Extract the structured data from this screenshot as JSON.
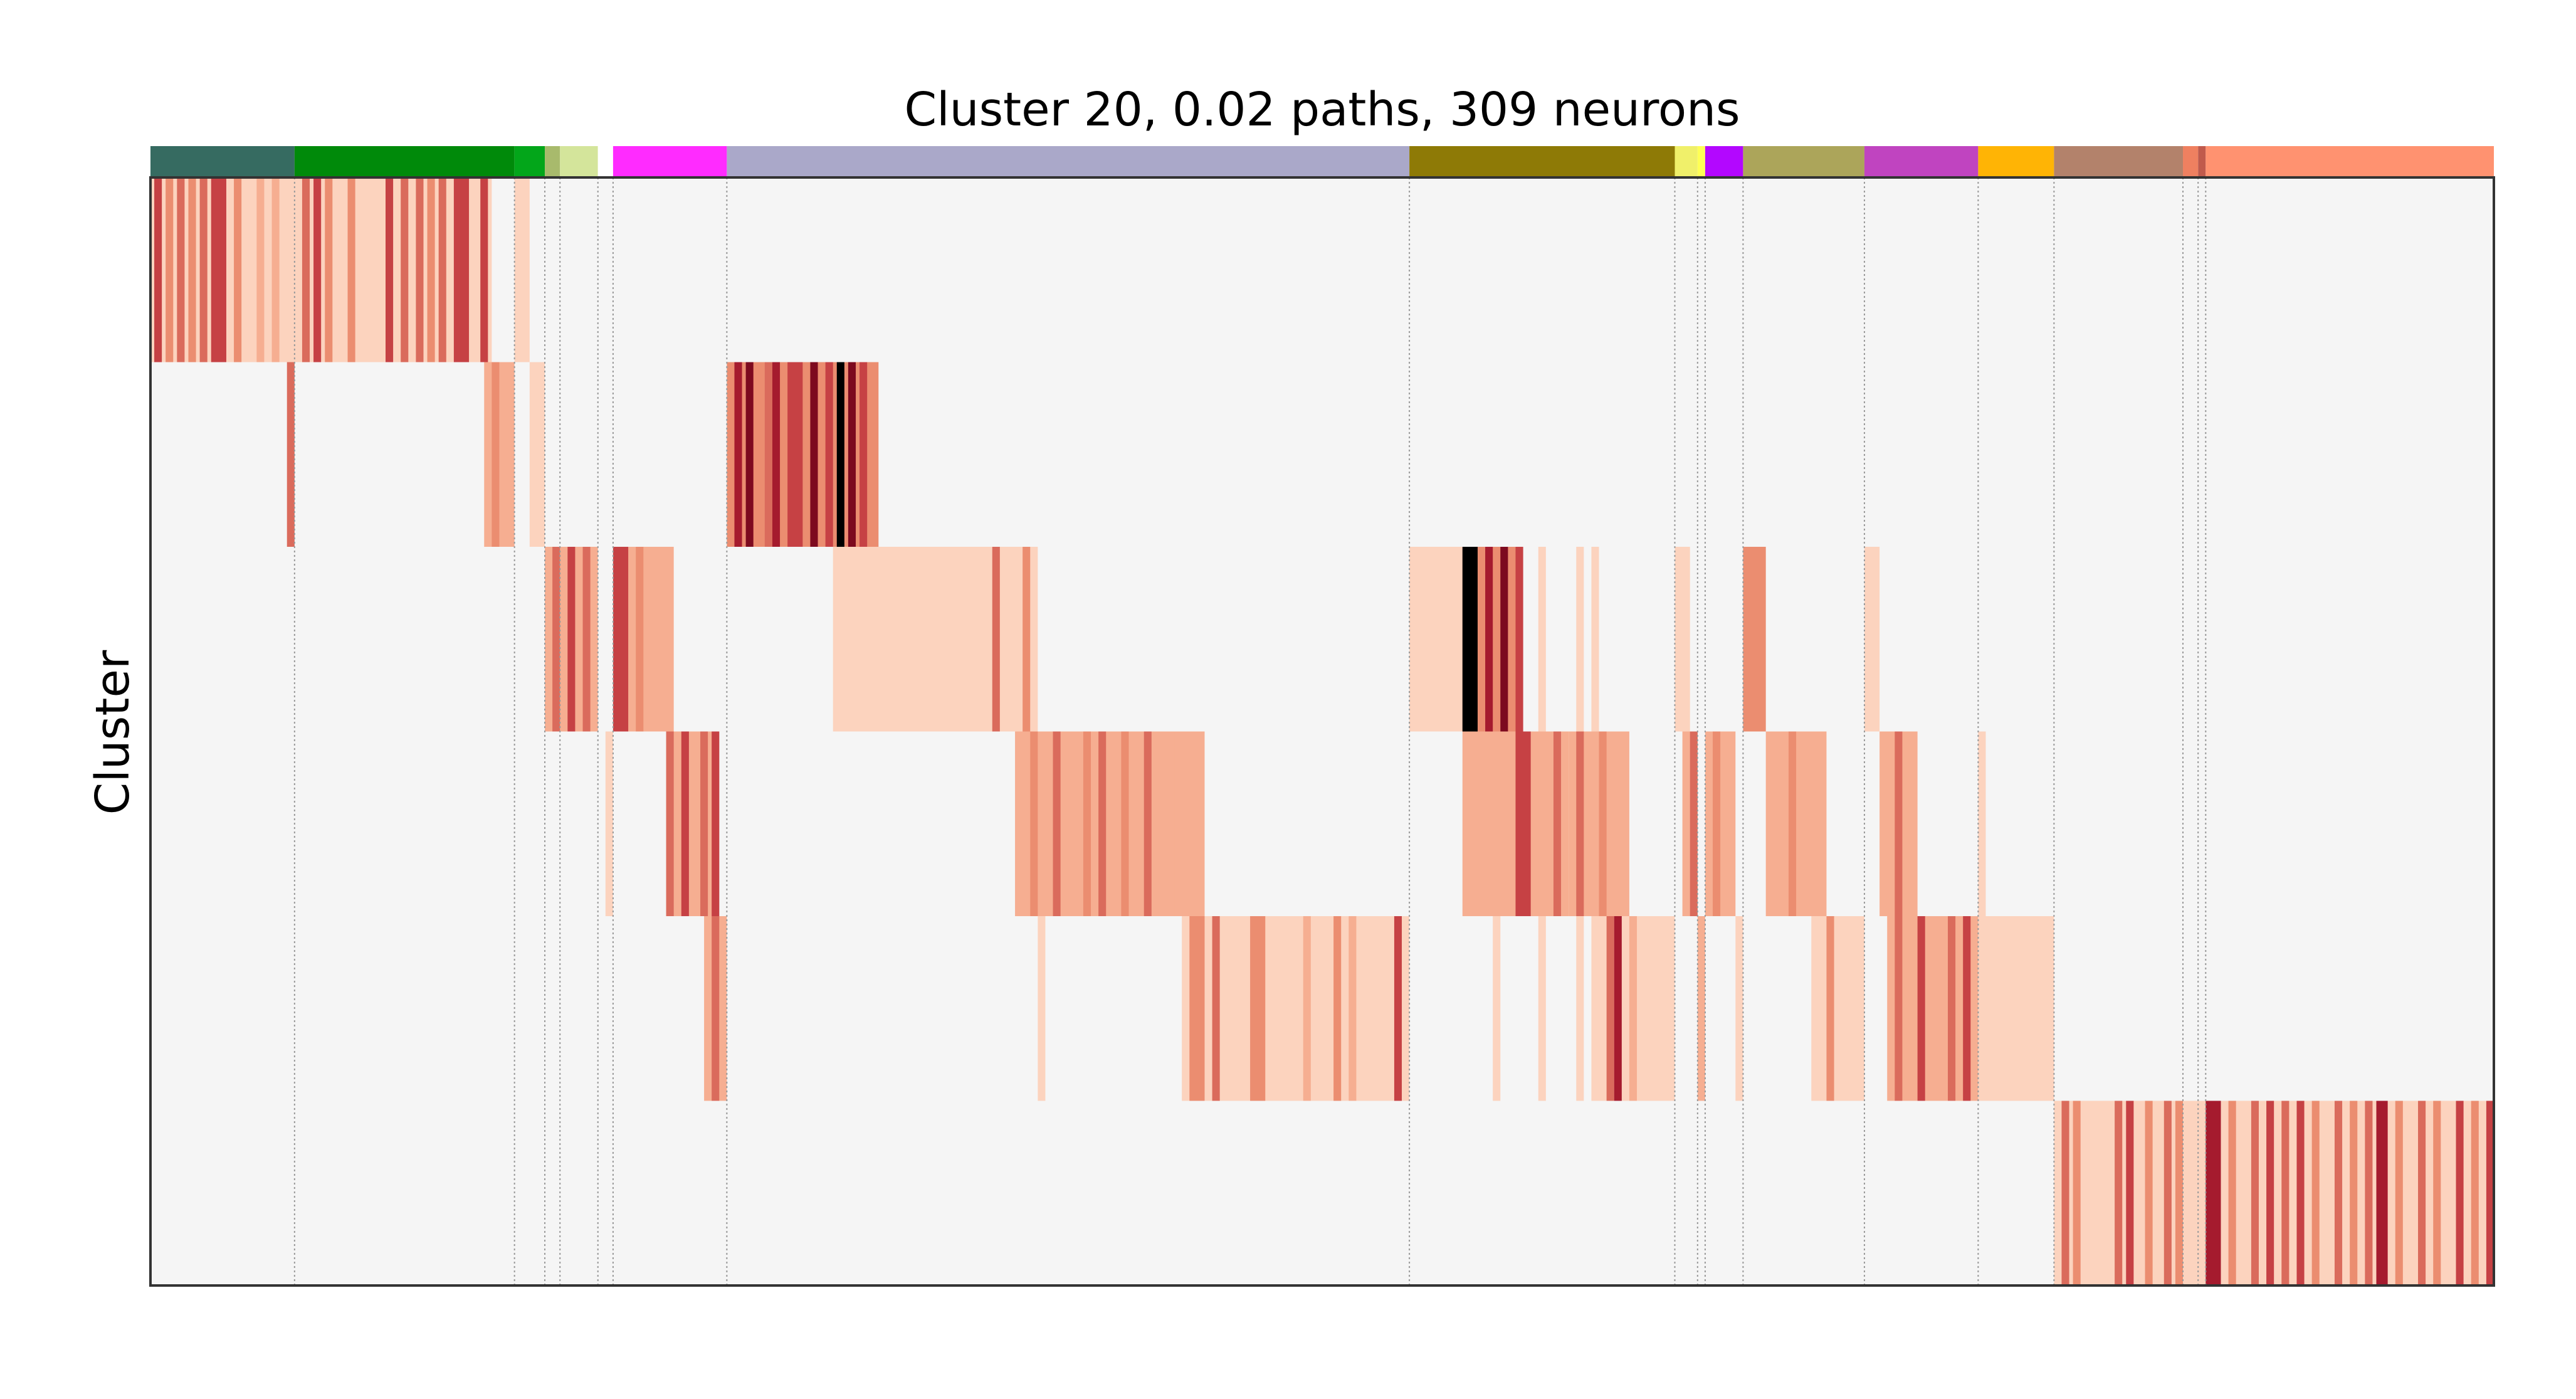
{
  "chart_data": {
    "type": "heatmap",
    "title": "Cluster 20, 0.02 paths, 309 neurons",
    "ylabel": "Cluster",
    "xlabel": "",
    "x_range": [
      0,
      309
    ],
    "row_count": 6,
    "grid": "vertical dotted separators between neuron groups",
    "colormap": [
      "#f5f5f5",
      "#fcd3be",
      "#f6ae91",
      "#eb8d70",
      "#da6b5c",
      "#c64144",
      "#a51b2e",
      "#7d0a1f"
    ],
    "groups": [
      {
        "start": 0,
        "end": 19,
        "color": "#366b61"
      },
      {
        "start": 19,
        "end": 48,
        "color": "#008a0a"
      },
      {
        "start": 48,
        "end": 52,
        "color": "#03a61a"
      },
      {
        "start": 52,
        "end": 54,
        "color": "#a8ba6c"
      },
      {
        "start": 54,
        "end": 59,
        "color": "#d4e59b"
      },
      {
        "start": 59,
        "end": 61,
        "color": "#ffffff"
      },
      {
        "start": 61,
        "end": 76,
        "color": "#ff2bff"
      },
      {
        "start": 76,
        "end": 166,
        "color": "#aaa8c9"
      },
      {
        "start": 166,
        "end": 201,
        "color": "#8e7a06"
      },
      {
        "start": 201,
        "end": 204,
        "color": "#f0f06a"
      },
      {
        "start": 204,
        "end": 205,
        "color": "#ffff55"
      },
      {
        "start": 205,
        "end": 210,
        "color": "#b307ff"
      },
      {
        "start": 210,
        "end": 226,
        "color": "#aca55a"
      },
      {
        "start": 226,
        "end": 241,
        "color": "#c044c0"
      },
      {
        "start": 241,
        "end": 251,
        "color": "#ffb405"
      },
      {
        "start": 251,
        "end": 268,
        "color": "#b3826b"
      },
      {
        "start": 268,
        "end": 270,
        "color": "#ef8060"
      },
      {
        "start": 270,
        "end": 271,
        "color": "#c05a4c"
      },
      {
        "start": 271,
        "end": 309,
        "color": "#ff9270"
      }
    ],
    "rows": [
      {
        "cluster": 1,
        "segments": [
          {
            "x0": 0,
            "x1": 45,
            "level": 1
          },
          {
            "x0": 48,
            "x1": 50,
            "level": 1
          }
        ],
        "bands": [
          {
            "x": 0.5,
            "w": 1,
            "level": 5
          },
          {
            "x": 2,
            "w": 1,
            "level": 3
          },
          {
            "x": 3.5,
            "w": 1,
            "level": 4
          },
          {
            "x": 5,
            "w": 1,
            "level": 3
          },
          {
            "x": 6.5,
            "w": 1,
            "level": 4
          },
          {
            "x": 8,
            "w": 2,
            "level": 5
          },
          {
            "x": 11,
            "w": 1,
            "level": 3
          },
          {
            "x": 14,
            "w": 1,
            "level": 2
          },
          {
            "x": 16,
            "w": 1,
            "level": 2
          },
          {
            "x": 20,
            "w": 1,
            "level": 4
          },
          {
            "x": 21.5,
            "w": 1,
            "level": 5
          },
          {
            "x": 23,
            "w": 1,
            "level": 3
          },
          {
            "x": 26,
            "w": 1,
            "level": 3
          },
          {
            "x": 31,
            "w": 1,
            "level": 5
          },
          {
            "x": 33,
            "w": 1,
            "level": 4
          },
          {
            "x": 35,
            "w": 1,
            "level": 4
          },
          {
            "x": 36.5,
            "w": 1,
            "level": 3
          },
          {
            "x": 38,
            "w": 1,
            "level": 4
          },
          {
            "x": 40,
            "w": 2,
            "level": 5
          },
          {
            "x": 43.5,
            "w": 1,
            "level": 5
          }
        ]
      },
      {
        "cluster": 2,
        "segments": [
          {
            "x0": 18,
            "x1": 19,
            "level": 4
          },
          {
            "x0": 44,
            "x1": 48,
            "level": 2
          },
          {
            "x0": 50,
            "x1": 52,
            "level": 1
          },
          {
            "x0": 76,
            "x1": 96,
            "level": 3
          }
        ],
        "bands": [
          {
            "x": 45,
            "w": 1,
            "level": 3
          },
          {
            "x": 77,
            "w": 1,
            "level": 6
          },
          {
            "x": 78.5,
            "w": 1,
            "level": 7
          },
          {
            "x": 81,
            "w": 1,
            "level": 4
          },
          {
            "x": 82,
            "w": 1,
            "level": 6
          },
          {
            "x": 84,
            "w": 2,
            "level": 5
          },
          {
            "x": 87,
            "w": 1,
            "level": 7
          },
          {
            "x": 89,
            "w": 1,
            "level": 5
          },
          {
            "x": 90.5,
            "w": 1,
            "level": 8
          },
          {
            "x": 92,
            "w": 1,
            "level": 7
          },
          {
            "x": 93.5,
            "w": 1,
            "level": 5
          }
        ]
      },
      {
        "cluster": 3,
        "segments": [
          {
            "x0": 52,
            "x1": 59,
            "level": 2
          },
          {
            "x0": 61,
            "x1": 69,
            "level": 2
          },
          {
            "x0": 90,
            "x1": 117,
            "level": 1
          },
          {
            "x0": 166,
            "x1": 173,
            "level": 1
          },
          {
            "x0": 173,
            "x1": 181,
            "level": 3
          },
          {
            "x0": 183,
            "x1": 184,
            "level": 1
          },
          {
            "x0": 188,
            "x1": 189,
            "level": 1
          },
          {
            "x0": 190,
            "x1": 191,
            "level": 1
          },
          {
            "x0": 201,
            "x1": 203,
            "level": 1
          },
          {
            "x0": 210,
            "x1": 213,
            "level": 3
          },
          {
            "x0": 226,
            "x1": 228,
            "level": 1
          }
        ],
        "bands": [
          {
            "x": 53,
            "w": 1,
            "level": 4
          },
          {
            "x": 55,
            "w": 1,
            "level": 5
          },
          {
            "x": 57,
            "w": 1,
            "level": 4
          },
          {
            "x": 61,
            "w": 2,
            "level": 5
          },
          {
            "x": 64,
            "w": 1,
            "level": 3
          },
          {
            "x": 111,
            "w": 1,
            "level": 4
          },
          {
            "x": 115,
            "w": 1,
            "level": 3
          },
          {
            "x": 173,
            "w": 2,
            "level": 8
          },
          {
            "x": 176,
            "w": 1,
            "level": 6
          },
          {
            "x": 178,
            "w": 1,
            "level": 7
          },
          {
            "x": 180,
            "w": 1,
            "level": 5
          }
        ]
      },
      {
        "cluster": 4,
        "segments": [
          {
            "x0": 60,
            "x1": 61,
            "level": 1
          },
          {
            "x0": 68,
            "x1": 75,
            "level": 2
          },
          {
            "x0": 114,
            "x1": 139,
            "level": 2
          },
          {
            "x0": 173,
            "x1": 187,
            "level": 2
          },
          {
            "x0": 187,
            "x1": 195,
            "level": 2
          },
          {
            "x0": 202,
            "x1": 204,
            "level": 2
          },
          {
            "x0": 205,
            "x1": 209,
            "level": 2
          },
          {
            "x0": 213,
            "x1": 221,
            "level": 2
          },
          {
            "x0": 228,
            "x1": 233,
            "level": 2
          },
          {
            "x0": 241,
            "x1": 242,
            "level": 1
          }
        ],
        "bands": [
          {
            "x": 68,
            "w": 1,
            "level": 4
          },
          {
            "x": 70,
            "w": 1,
            "level": 5
          },
          {
            "x": 72.5,
            "w": 1,
            "level": 4
          },
          {
            "x": 74,
            "w": 1,
            "level": 5
          },
          {
            "x": 116,
            "w": 1,
            "level": 3
          },
          {
            "x": 119,
            "w": 1,
            "level": 4
          },
          {
            "x": 123,
            "w": 1,
            "level": 3
          },
          {
            "x": 125,
            "w": 1,
            "level": 4
          },
          {
            "x": 128,
            "w": 1,
            "level": 3
          },
          {
            "x": 131,
            "w": 1,
            "level": 4
          },
          {
            "x": 134,
            "w": 1,
            "level": 2
          },
          {
            "x": 180,
            "w": 2,
            "level": 5
          },
          {
            "x": 185,
            "w": 1,
            "level": 4
          },
          {
            "x": 188,
            "w": 1,
            "level": 4
          },
          {
            "x": 191,
            "w": 1,
            "level": 3
          },
          {
            "x": 203,
            "w": 1,
            "level": 4
          },
          {
            "x": 206,
            "w": 1,
            "level": 3
          },
          {
            "x": 216,
            "w": 1,
            "level": 3
          },
          {
            "x": 230,
            "w": 1,
            "level": 4
          }
        ]
      },
      {
        "cluster": 5,
        "segments": [
          {
            "x0": 73,
            "x1": 76,
            "level": 2
          },
          {
            "x0": 117,
            "x1": 118,
            "level": 1
          },
          {
            "x0": 136,
            "x1": 166,
            "level": 1
          },
          {
            "x0": 177,
            "x1": 178,
            "level": 1
          },
          {
            "x0": 183,
            "x1": 184,
            "level": 1
          },
          {
            "x0": 188,
            "x1": 189,
            "level": 1
          },
          {
            "x0": 190,
            "x1": 201,
            "level": 1
          },
          {
            "x0": 204,
            "x1": 205,
            "level": 2
          },
          {
            "x0": 209,
            "x1": 210,
            "level": 1
          },
          {
            "x0": 219,
            "x1": 226,
            "level": 1
          },
          {
            "x0": 229,
            "x1": 241,
            "level": 2
          },
          {
            "x0": 241,
            "x1": 251,
            "level": 1
          }
        ],
        "bands": [
          {
            "x": 74,
            "w": 1,
            "level": 4
          },
          {
            "x": 137,
            "w": 2,
            "level": 3
          },
          {
            "x": 140,
            "w": 1,
            "level": 4
          },
          {
            "x": 145,
            "w": 2,
            "level": 3
          },
          {
            "x": 152,
            "w": 1,
            "level": 2
          },
          {
            "x": 156,
            "w": 1,
            "level": 3
          },
          {
            "x": 158,
            "w": 1,
            "level": 2
          },
          {
            "x": 164,
            "w": 1,
            "level": 5
          },
          {
            "x": 192,
            "w": 1,
            "level": 4
          },
          {
            "x": 193,
            "w": 1,
            "level": 6
          },
          {
            "x": 195,
            "w": 1,
            "level": 2
          },
          {
            "x": 221,
            "w": 1,
            "level": 3
          },
          {
            "x": 230,
            "w": 1,
            "level": 4
          },
          {
            "x": 233,
            "w": 1,
            "level": 5
          },
          {
            "x": 237,
            "w": 1,
            "level": 4
          },
          {
            "x": 239,
            "w": 1,
            "level": 5
          }
        ]
      },
      {
        "cluster": 6,
        "segments": [
          {
            "x0": 251,
            "x1": 309,
            "level": 1
          }
        ],
        "bands": [
          {
            "x": 252,
            "w": 1,
            "level": 4
          },
          {
            "x": 253.5,
            "w": 1,
            "level": 3
          },
          {
            "x": 259,
            "w": 1,
            "level": 4
          },
          {
            "x": 260.5,
            "w": 1,
            "level": 5
          },
          {
            "x": 263,
            "w": 1,
            "level": 3
          },
          {
            "x": 265.5,
            "w": 1,
            "level": 4
          },
          {
            "x": 267,
            "w": 1,
            "level": 3
          },
          {
            "x": 271,
            "w": 2,
            "level": 6
          },
          {
            "x": 274,
            "w": 1,
            "level": 3
          },
          {
            "x": 277,
            "w": 1,
            "level": 4
          },
          {
            "x": 279,
            "w": 1,
            "level": 5
          },
          {
            "x": 281,
            "w": 1,
            "level": 4
          },
          {
            "x": 283,
            "w": 1,
            "level": 5
          },
          {
            "x": 285,
            "w": 1,
            "level": 3
          },
          {
            "x": 288,
            "w": 1,
            "level": 4
          },
          {
            "x": 290,
            "w": 1,
            "level": 3
          },
          {
            "x": 292,
            "w": 1,
            "level": 4
          },
          {
            "x": 293.5,
            "w": 1.5,
            "level": 6
          },
          {
            "x": 296,
            "w": 1,
            "level": 3
          },
          {
            "x": 299,
            "w": 1,
            "level": 4
          },
          {
            "x": 301,
            "w": 1,
            "level": 3
          },
          {
            "x": 304,
            "w": 1,
            "level": 5
          },
          {
            "x": 306,
            "w": 1,
            "level": 3
          },
          {
            "x": 308,
            "w": 1,
            "level": 5
          }
        ]
      }
    ]
  }
}
